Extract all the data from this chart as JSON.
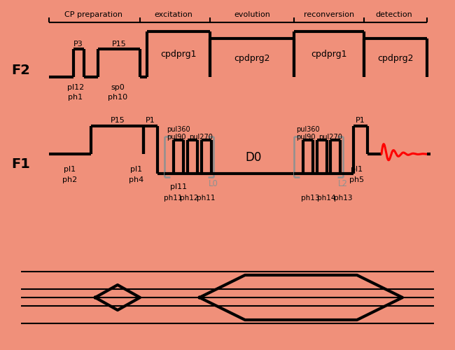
{
  "bg_color": "#F0907A",
  "sections": [
    "CP preparation",
    "excitation",
    "evolution",
    "reconversion",
    "detection"
  ],
  "gray": "#909090"
}
